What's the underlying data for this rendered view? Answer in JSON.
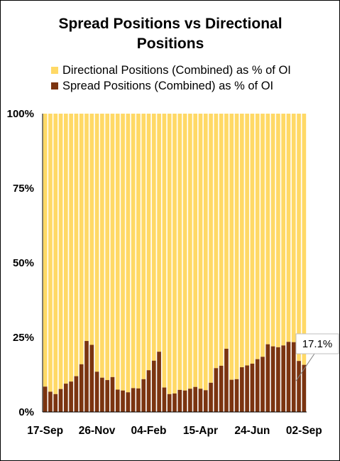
{
  "chart_data": {
    "type": "bar",
    "stacked": "percent",
    "title": "Spread Positions  vs Directional Positions",
    "title_lines": [
      "Spread  Positions  vs Directional",
      "Positions"
    ],
    "xlabel": "",
    "ylabel": "",
    "ylim": [
      0,
      100
    ],
    "yticks": [
      "0%",
      "25%",
      "50%",
      "75%",
      "100%"
    ],
    "ytick_values": [
      0,
      25,
      50,
      75,
      100
    ],
    "xtick_labels": [
      "17-Sep",
      "26-Nov",
      "04-Feb",
      "15-Apr",
      "24-Jun",
      "02-Sep"
    ],
    "xtick_indices": [
      0,
      10,
      20,
      30,
      40,
      50
    ],
    "legend_position": "top",
    "series": [
      {
        "name": "Directional Positions (Combined) as % of OI",
        "color": "#FFD966",
        "values": [
          91.5,
          93.2,
          94.0,
          92.3,
          90.5,
          89.8,
          88.0,
          84.0,
          76.2,
          77.5,
          86.5,
          88.5,
          89.3,
          88.3,
          92.5,
          92.8,
          93.4,
          92.0,
          92.1,
          89.0,
          86.0,
          82.8,
          79.8,
          91.8,
          94.0,
          93.8,
          92.6,
          92.8,
          92.2,
          91.6,
          92.2,
          92.7,
          90.2,
          85.3,
          84.5,
          78.8,
          89.2,
          89.0,
          85.0,
          84.4,
          83.8,
          82.3,
          81.5,
          77.3,
          78.0,
          78.3,
          77.7,
          76.5,
          76.6,
          82.9,
          84.2
        ],
        "spark_values": [
          91.5,
          93.2,
          94.0,
          92.3,
          90.5,
          89.8,
          88.0,
          84.0,
          76.2,
          77.5,
          86.5,
          88.5,
          89.3,
          88.3,
          92.5,
          92.8,
          93.4,
          92.0,
          92.1,
          89.0,
          86.0,
          82.8,
          79.8,
          91.8,
          94.0,
          93.8,
          92.6,
          92.8,
          92.2,
          91.6,
          92.2,
          92.7,
          90.2,
          85.3,
          84.5,
          78.8,
          89.2,
          89.0,
          85.0,
          84.4,
          83.8,
          82.3,
          81.5,
          77.3,
          78.0,
          78.3,
          77.7,
          76.5,
          76.6,
          82.9,
          84.2
        ]
      },
      {
        "name": "Spread Positions (Combined) as % of OI",
        "color": "#7B3410",
        "values": [
          8.5,
          6.8,
          6.0,
          7.7,
          9.5,
          10.2,
          12.0,
          16.0,
          23.8,
          22.5,
          13.5,
          11.5,
          10.7,
          11.7,
          7.5,
          7.2,
          6.6,
          8.0,
          7.9,
          11.0,
          14.0,
          17.2,
          20.2,
          8.2,
          6.0,
          6.2,
          7.4,
          7.2,
          7.8,
          8.4,
          7.8,
          7.3,
          9.8,
          14.7,
          15.5,
          21.2,
          10.8,
          11.0,
          15.0,
          15.6,
          16.2,
          17.7,
          18.5,
          22.7,
          22.0,
          21.7,
          22.3,
          23.5,
          23.4,
          17.1,
          15.8
        ]
      }
    ],
    "annotation": {
      "text": "17.1%",
      "index": 49,
      "value": 17.1
    }
  }
}
